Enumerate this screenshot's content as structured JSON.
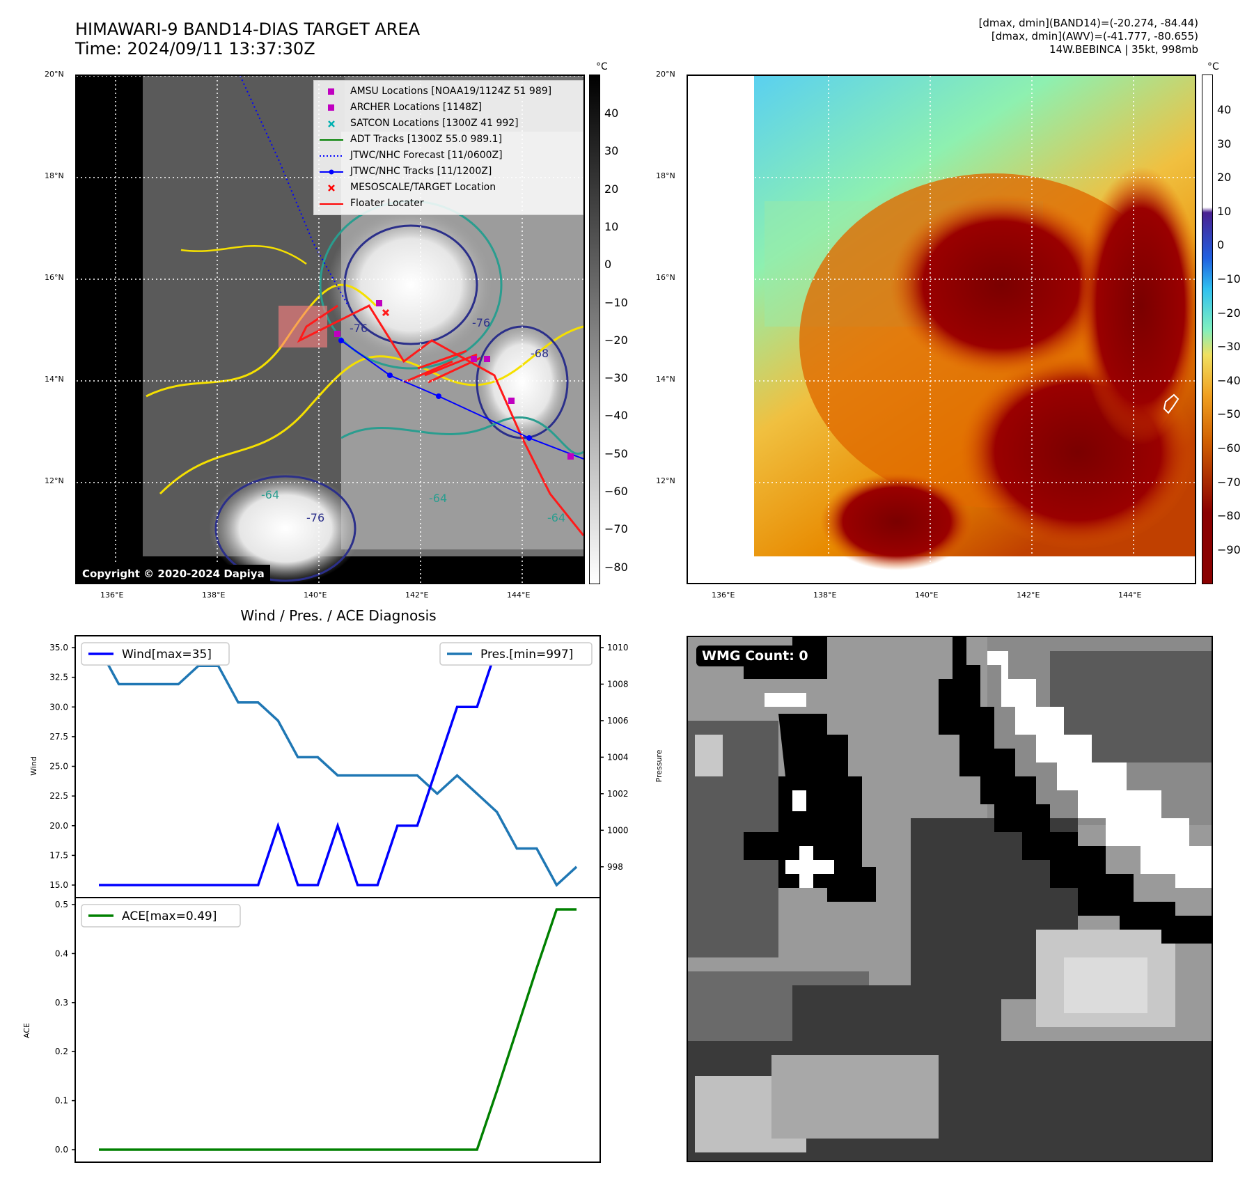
{
  "header": {
    "title_line1": "HIMAWARI-9 BAND14-DIAS TARGET AREA",
    "title_line2": "Time: 2024/09/11 13:37:30Z",
    "info_line1": "[dmax, dmin](BAND14)=(-20.274, -84.44)",
    "info_line2": "[dmax, dmin](AWV)=(-41.777, -80.655)",
    "info_line3": "14W.BEBINCA | 35kt, 998mb"
  },
  "map_ir": {
    "lat_labels": [
      "20°N",
      "18°N",
      "16°N",
      "14°N",
      "12°N"
    ],
    "lon_labels": [
      "136°E",
      "138°E",
      "140°E",
      "142°E",
      "144°E"
    ],
    "colorbar_unit": "°C",
    "colorbar_ticks": [
      "40",
      "30",
      "20",
      "10",
      "0",
      "−10",
      "−20",
      "−30",
      "−40",
      "−50",
      "−60",
      "−70",
      "−80"
    ],
    "copyright": "Copyright © 2020-2024 Dapiya",
    "legend": [
      {
        "label": "AMSU Locations [NOAA19/1124Z 51 989]",
        "symbol": "square",
        "color": "#c000c0"
      },
      {
        "label": "ARCHER Locations [1148Z]",
        "symbol": "square",
        "color": "#c000c0"
      },
      {
        "label": "SATCON Locations [1300Z 41 992]",
        "symbol": "x",
        "color": "#00b0b0"
      },
      {
        "label": "ADT Tracks [1300Z 55.0 989.1]",
        "symbol": "line",
        "color": "#008000"
      },
      {
        "label": "JTWC/NHC Forecast [11/0600Z]",
        "symbol": "dotted",
        "color": "#0000ff"
      },
      {
        "label": "JTWC/NHC Tracks [11/1200Z]",
        "symbol": "line-dot",
        "color": "#0000ff"
      },
      {
        "label": "MESOSCALE/TARGET Location",
        "symbol": "x",
        "color": "#ff0000"
      },
      {
        "label": "Floater Locater",
        "symbol": "line",
        "color": "#ff0000"
      }
    ],
    "contour_labels": [
      "-76",
      "-64",
      "-76",
      "-64",
      "-76",
      "-68",
      "-64"
    ]
  },
  "map_awv": {
    "lat_labels": [
      "20°N",
      "18°N",
      "16°N",
      "14°N",
      "12°N"
    ],
    "lon_labels": [
      "136°E",
      "138°E",
      "140°E",
      "142°E",
      "144°E"
    ],
    "colorbar_unit": "°C",
    "colorbar_ticks": [
      "40",
      "30",
      "20",
      "10",
      "0",
      "−10",
      "−20",
      "−30",
      "−40",
      "−50",
      "−60",
      "−70",
      "−80",
      "−90"
    ]
  },
  "diagnosis": {
    "title": "Wind / Pres. / ACE Diagnosis",
    "wind_axis_label": "Wind",
    "pressure_axis_label": "Pressure",
    "ace_axis_label": "ACE",
    "wind_legend": "Wind[max=35]",
    "pres_legend": "Pres.[min=997]",
    "ace_legend": "ACE[max=0.49]",
    "wind_ticks": [
      "35.0",
      "32.5",
      "30.0",
      "27.5",
      "25.0",
      "22.5",
      "20.0",
      "17.5",
      "15.0"
    ],
    "pres_ticks": [
      "1010",
      "1008",
      "1006",
      "1004",
      "1002",
      "1000",
      "998"
    ],
    "ace_ticks": [
      "0.5",
      "0.4",
      "0.3",
      "0.2",
      "0.1",
      "0.0"
    ],
    "colors": {
      "wind": "#0000ff",
      "pressure": "#1f77b4",
      "ace": "#008000"
    }
  },
  "wmg": {
    "badge": "WMG Count: 0"
  },
  "chart_data": [
    {
      "type": "line",
      "title": "Wind / Pres. / ACE Diagnosis",
      "ylabel": "Wind",
      "ylim": [
        15,
        35
      ],
      "series": [
        {
          "name": "Wind[max=35]",
          "values": [
            15,
            15,
            15,
            15,
            15,
            15,
            15,
            15,
            15,
            20,
            15,
            15,
            20,
            15,
            15,
            20,
            20,
            25,
            30,
            30,
            35,
            35,
            35,
            35,
            35
          ]
        }
      ]
    },
    {
      "type": "line",
      "ylabel": "Pressure",
      "ylim": [
        997,
        1010
      ],
      "series": [
        {
          "name": "Pres.[min=997]",
          "values": [
            1010,
            1008,
            1008,
            1008,
            1008,
            1009,
            1009,
            1007,
            1007,
            1006,
            1004,
            1004,
            1003,
            1003,
            1003,
            1003,
            1003,
            1002,
            1003,
            1002,
            1001,
            999,
            999,
            997,
            998
          ]
        }
      ]
    },
    {
      "type": "line",
      "ylabel": "ACE",
      "ylim": [
        0,
        0.5
      ],
      "series": [
        {
          "name": "ACE[max=0.49]",
          "values": [
            0,
            0,
            0,
            0,
            0,
            0,
            0,
            0,
            0,
            0,
            0,
            0,
            0,
            0,
            0,
            0,
            0,
            0,
            0,
            0,
            0.12,
            0.245,
            0.37,
            0.49,
            0.49
          ]
        }
      ]
    }
  ]
}
